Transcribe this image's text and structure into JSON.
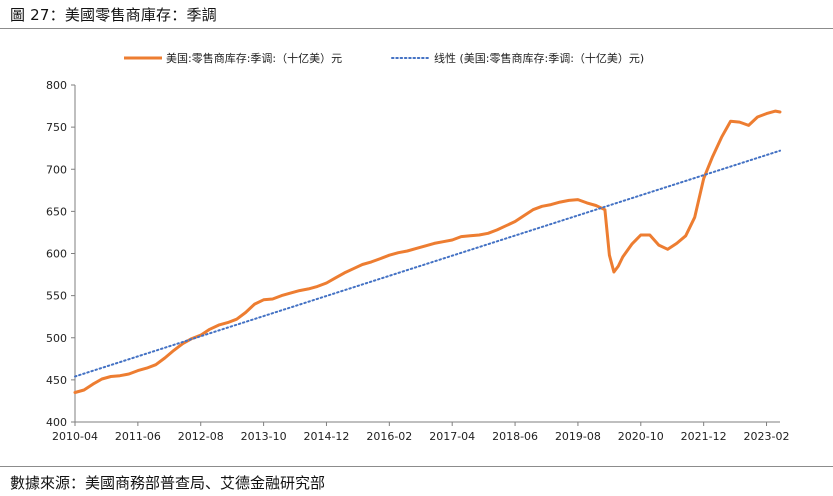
{
  "header": {
    "title": "圖 27：美國零售商庫存：季調"
  },
  "footer": {
    "source": "數據來源：美國商務部普查局、艾德金融研究部"
  },
  "colors": {
    "series": "#ED7D31",
    "trend": "#4472C4"
  },
  "chart_data": {
    "type": "line",
    "title": "",
    "xlabel": "",
    "ylabel": "",
    "ylim": [
      400,
      800
    ],
    "yticks": [
      400,
      450,
      500,
      550,
      600,
      650,
      700,
      750,
      800
    ],
    "xlim": [
      "2010-04",
      "2023-05"
    ],
    "xtick_labels": [
      "2010-04",
      "2011-06",
      "2012-08",
      "2013-10",
      "2014-12",
      "2016-02",
      "2017-04",
      "2018-06",
      "2019-08",
      "2020-10",
      "2021-12",
      "2023-02"
    ],
    "grid": false,
    "legend_position": "top",
    "series": [
      {
        "name": "美国:零售商库存:季调:（十亿美）元",
        "style": "solid",
        "x": [
          "2010-04",
          "2010-06",
          "2010-08",
          "2010-10",
          "2010-12",
          "2011-02",
          "2011-04",
          "2011-06",
          "2011-08",
          "2011-10",
          "2011-12",
          "2012-02",
          "2012-04",
          "2012-06",
          "2012-08",
          "2012-10",
          "2012-12",
          "2013-02",
          "2013-04",
          "2013-06",
          "2013-08",
          "2013-10",
          "2013-12",
          "2014-02",
          "2014-04",
          "2014-06",
          "2014-08",
          "2014-10",
          "2014-12",
          "2015-02",
          "2015-04",
          "2015-06",
          "2015-08",
          "2015-10",
          "2015-12",
          "2016-02",
          "2016-04",
          "2016-06",
          "2016-08",
          "2016-10",
          "2016-12",
          "2017-02",
          "2017-04",
          "2017-06",
          "2017-08",
          "2017-10",
          "2017-12",
          "2018-02",
          "2018-04",
          "2018-06",
          "2018-08",
          "2018-10",
          "2018-12",
          "2019-02",
          "2019-04",
          "2019-06",
          "2019-08",
          "2019-10",
          "2019-12",
          "2020-02",
          "2020-03",
          "2020-04",
          "2020-05",
          "2020-06",
          "2020-08",
          "2020-10",
          "2020-12",
          "2021-02",
          "2021-04",
          "2021-06",
          "2021-08",
          "2021-10",
          "2021-12",
          "2022-02",
          "2022-04",
          "2022-06",
          "2022-08",
          "2022-10",
          "2022-12",
          "2023-02",
          "2023-04",
          "2023-05"
        ],
        "values": [
          435,
          438,
          445,
          451,
          454,
          455,
          457,
          461,
          464,
          468,
          476,
          485,
          493,
          499,
          503,
          510,
          515,
          518,
          522,
          530,
          540,
          545,
          546,
          550,
          553,
          556,
          558,
          561,
          565,
          571,
          577,
          582,
          587,
          590,
          594,
          598,
          601,
          603,
          606,
          609,
          612,
          614,
          616,
          620,
          621,
          622,
          624,
          628,
          633,
          638,
          645,
          652,
          656,
          658,
          661,
          663,
          664,
          660,
          657,
          652,
          598,
          578,
          585,
          596,
          611,
          622,
          622,
          610,
          605,
          612,
          621,
          643,
          689,
          715,
          738,
          757,
          756,
          752,
          762,
          766,
          769,
          768
        ]
      },
      {
        "name": "线性 (美国:零售商库存:季调:（十亿美）元)",
        "style": "dotted",
        "x": [
          "2010-04",
          "2023-05"
        ],
        "values": [
          454,
          722
        ]
      }
    ]
  }
}
